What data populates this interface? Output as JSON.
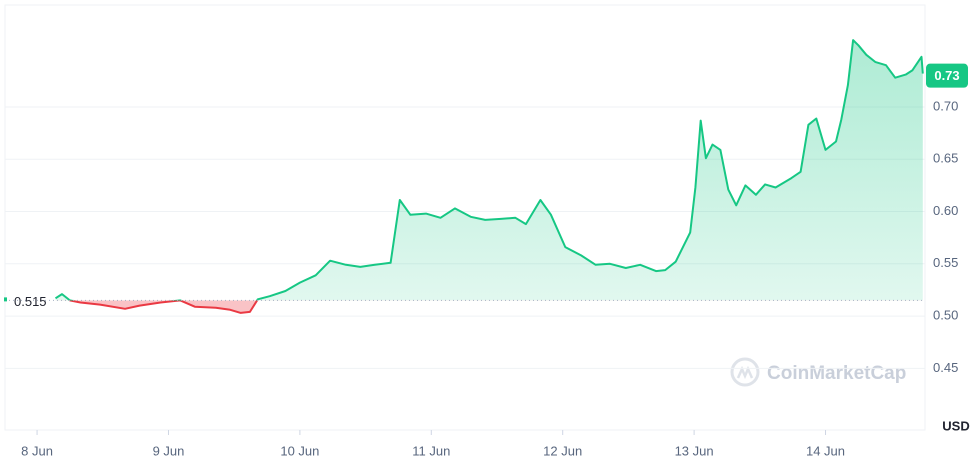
{
  "chart_data": {
    "type": "line",
    "watermark": "CoinMarketCap",
    "y_unit": "USD",
    "baseline": 0.515,
    "current_price": 0.73,
    "x": [
      8.14,
      8.19,
      8.25,
      8.33,
      8.48,
      8.67,
      8.78,
      8.94,
      9.09,
      9.2,
      9.36,
      9.47,
      9.55,
      9.62,
      9.68,
      9.77,
      9.89,
      10.0,
      10.12,
      10.23,
      10.35,
      10.46,
      10.57,
      10.69,
      10.76,
      10.84,
      10.96,
      11.07,
      11.18,
      11.3,
      11.41,
      11.53,
      11.64,
      11.72,
      11.83,
      11.91,
      12.02,
      12.14,
      12.25,
      12.36,
      12.48,
      12.59,
      12.71,
      12.78,
      12.86,
      12.97,
      13.01,
      13.05,
      13.09,
      13.14,
      13.2,
      13.26,
      13.32,
      13.39,
      13.47,
      13.54,
      13.62,
      13.74,
      13.81,
      13.87,
      13.93,
      14.0,
      14.08,
      14.12,
      14.17,
      14.21,
      14.25,
      14.31,
      14.38,
      14.46,
      14.53,
      14.61,
      14.66,
      14.73,
      14.74
    ],
    "series": [
      {
        "color": "#16c784",
        "negative_color": "#ea3943",
        "values": [
          0.517,
          0.521,
          0.515,
          0.513,
          0.511,
          0.507,
          0.51,
          0.513,
          0.515,
          0.509,
          0.508,
          0.506,
          0.503,
          0.504,
          0.516,
          0.519,
          0.524,
          0.532,
          0.539,
          0.553,
          0.549,
          0.547,
          0.549,
          0.551,
          0.611,
          0.597,
          0.598,
          0.594,
          0.603,
          0.595,
          0.592,
          0.593,
          0.594,
          0.588,
          0.611,
          0.597,
          0.566,
          0.558,
          0.549,
          0.55,
          0.546,
          0.549,
          0.543,
          0.544,
          0.552,
          0.58,
          0.623,
          0.687,
          0.651,
          0.664,
          0.659,
          0.621,
          0.606,
          0.625,
          0.616,
          0.626,
          0.623,
          0.632,
          0.638,
          0.683,
          0.689,
          0.659,
          0.667,
          0.688,
          0.721,
          0.764,
          0.759,
          0.75,
          0.743,
          0.74,
          0.728,
          0.731,
          0.735,
          0.748,
          0.732
        ]
      }
    ],
    "xlim": [
      7.756,
      14.757
    ],
    "xticks": [
      {
        "value": 8,
        "label": "8 Jun"
      },
      {
        "value": 9,
        "label": "9 Jun"
      },
      {
        "value": 10,
        "label": "10 Jun"
      },
      {
        "value": 11,
        "label": "11 Jun"
      },
      {
        "value": 12,
        "label": "12 Jun"
      },
      {
        "value": 13,
        "label": "13 Jun"
      },
      {
        "value": 14,
        "label": "14 Jun"
      }
    ],
    "ylim": [
      0.391,
      0.7976
    ],
    "yticks": [
      0.45,
      {
        "value": 0.5,
        "label": "0.50"
      },
      0.55,
      {
        "value": 0.6,
        "label": "0.60"
      },
      0.65,
      {
        "value": 0.7,
        "label": "0.70"
      }
    ],
    "grid": true
  }
}
